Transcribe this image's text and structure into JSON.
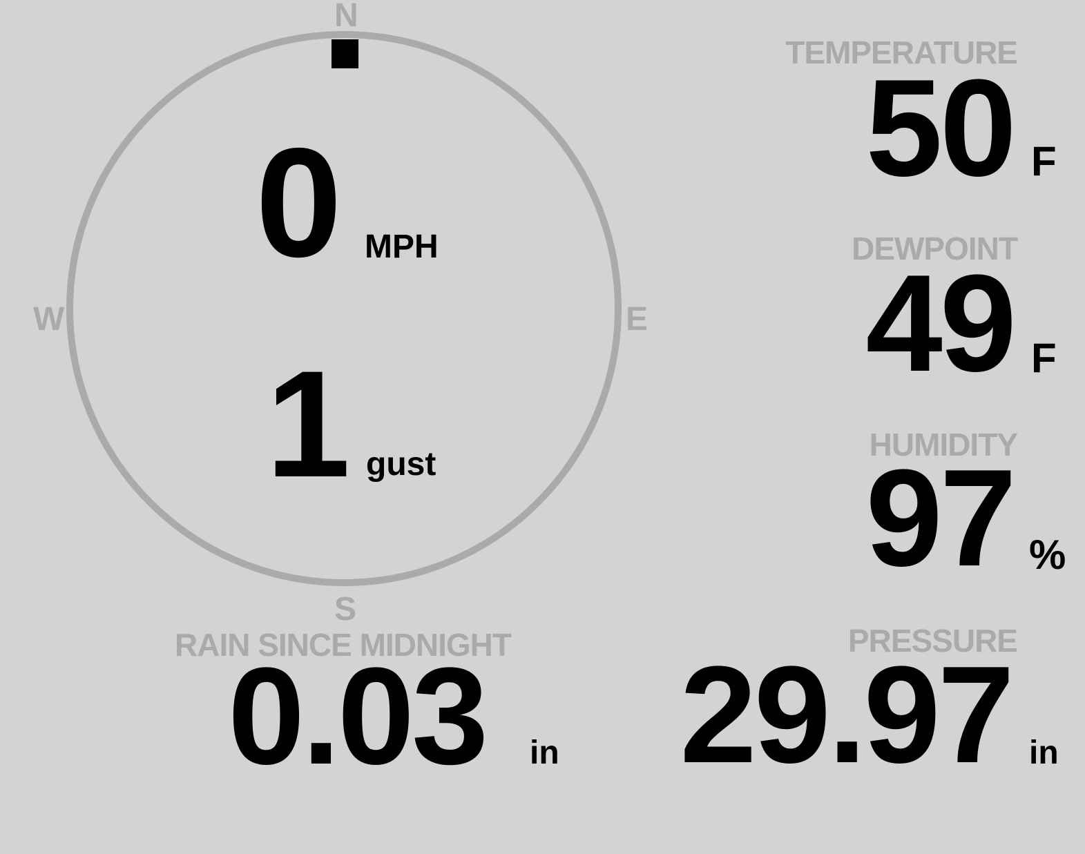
{
  "colors": {
    "background": "#d3d3d3",
    "muted": "#aaaaaa",
    "value": "#000000"
  },
  "compass": {
    "north": "N",
    "east": "E",
    "south": "S",
    "west": "W",
    "wind_direction_deg": 0
  },
  "wind": {
    "speed": "0",
    "speed_unit": "MPH",
    "gust": "1",
    "gust_label": "gust"
  },
  "temperature": {
    "label": "TEMPERATURE",
    "value": "50",
    "unit": "F"
  },
  "dewpoint": {
    "label": "DEWPOINT",
    "value": "49",
    "unit": "F"
  },
  "humidity": {
    "label": "HUMIDITY",
    "value": "97",
    "unit": "%"
  },
  "rain": {
    "label": "RAIN SINCE MIDNIGHT",
    "value": "0.03",
    "unit": "in"
  },
  "pressure": {
    "label": "PRESSURE",
    "value": "29.97",
    "unit": "in"
  }
}
